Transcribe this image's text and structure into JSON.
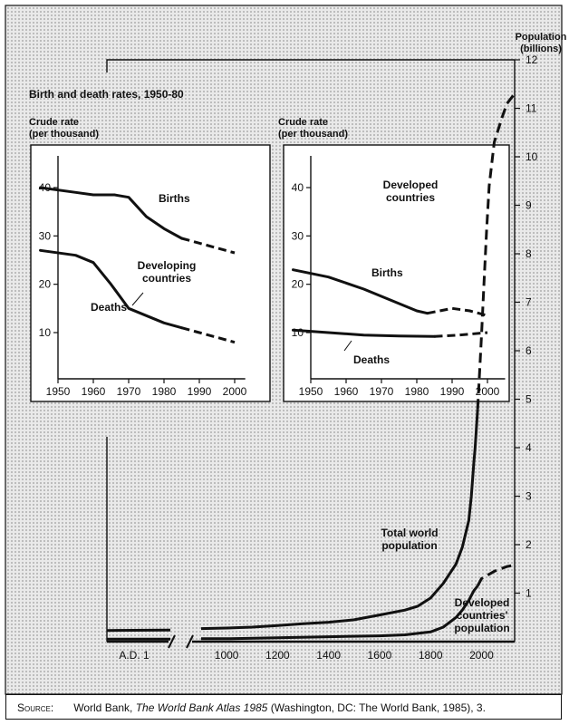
{
  "chart_data": [
    {
      "type": "line",
      "title": "Birth and death rates, 1950-80",
      "panel": "Developing countries",
      "ylabel": "Crude rate (per thousand)",
      "xlim": [
        1945,
        2003
      ],
      "ylim": [
        0,
        50
      ],
      "x_ticks": [
        "1950",
        "1960",
        "1970",
        "1980",
        "1990",
        "2000"
      ],
      "y_ticks": [
        "10",
        "20",
        "30",
        "40"
      ],
      "labels": {
        "panel": [
          "Developing",
          "countries"
        ],
        "births": "Births",
        "deaths": "Deaths"
      },
      "series": [
        {
          "name": "Births",
          "points": [
            [
              1945,
              40
            ],
            [
              1955,
              39
            ],
            [
              1960,
              38.5
            ],
            [
              1966,
              38.5
            ],
            [
              1970,
              38
            ],
            [
              1975,
              34
            ],
            [
              1980,
              31.5
            ],
            [
              1985,
              29.5
            ]
          ],
          "projected": [
            [
              1985,
              29.5
            ],
            [
              1990,
              28.5
            ],
            [
              1995,
              27.5
            ],
            [
              2000,
              26.5
            ]
          ]
        },
        {
          "name": "Deaths",
          "points": [
            [
              1945,
              27
            ],
            [
              1955,
              26
            ],
            [
              1960,
              24.5
            ],
            [
              1965,
              20
            ],
            [
              1970,
              15
            ],
            [
              1975,
              13.5
            ],
            [
              1980,
              12
            ],
            [
              1985,
              11
            ]
          ],
          "projected": [
            [
              1985,
              11
            ],
            [
              1990,
              10
            ],
            [
              1995,
              9
            ],
            [
              2000,
              8
            ]
          ]
        }
      ]
    },
    {
      "type": "line",
      "panel": "Developed countries",
      "ylabel": "Crude rate (per thousand)",
      "xlim": [
        1945,
        2005
      ],
      "ylim": [
        0,
        50
      ],
      "x_ticks": [
        "1950",
        "1960",
        "1970",
        "1980",
        "1990",
        "2000"
      ],
      "y_ticks": [
        "10",
        "20",
        "30",
        "40"
      ],
      "labels": {
        "panel": [
          "Developed",
          "countries"
        ],
        "births": "Births",
        "deaths": "Deaths"
      },
      "series": [
        {
          "name": "Births",
          "points": [
            [
              1945,
              23
            ],
            [
              1955,
              21.5
            ],
            [
              1965,
              19
            ],
            [
              1975,
              16
            ],
            [
              1980,
              14.5
            ],
            [
              1983,
              14
            ]
          ],
          "projected": [
            [
              1983,
              14
            ],
            [
              1990,
              15
            ],
            [
              1995,
              14.5
            ],
            [
              2000,
              13.5
            ]
          ]
        },
        {
          "name": "Deaths",
          "points": [
            [
              1945,
              10.5
            ],
            [
              1955,
              10
            ],
            [
              1965,
              9.5
            ],
            [
              1975,
              9.3
            ],
            [
              1985,
              9.2
            ]
          ],
          "projected": [
            [
              1985,
              9.2
            ],
            [
              1992,
              9.5
            ],
            [
              2000,
              10
            ]
          ]
        }
      ]
    },
    {
      "type": "line",
      "panel": "Population (billions)",
      "ylabel": [
        "Population",
        "(billions)"
      ],
      "ylim": [
        0,
        12
      ],
      "y_ticks": [
        "1",
        "2",
        "3",
        "4",
        "5",
        "6",
        "7",
        "8",
        "9",
        "10",
        "11",
        "12"
      ],
      "x_ticks": [
        "A.D. 1",
        "1000",
        "1200",
        "1400",
        "1600",
        "1800",
        "2000"
      ],
      "x_tick_years": [
        1,
        1000,
        1200,
        1400,
        1600,
        1800,
        2000
      ],
      "labels": {
        "total": [
          "Total world",
          "population"
        ],
        "developed": [
          "Developed",
          "countries'",
          "population"
        ]
      },
      "series": [
        {
          "name": "Total world population",
          "points": [
            [
              1,
              0.23
            ],
            [
              250,
              0.24
            ],
            [
              900,
              0.27
            ],
            [
              1000,
              0.28
            ],
            [
              1100,
              0.3
            ],
            [
              1200,
              0.33
            ],
            [
              1300,
              0.37
            ],
            [
              1400,
              0.4
            ],
            [
              1500,
              0.45
            ],
            [
              1600,
              0.55
            ],
            [
              1700,
              0.65
            ],
            [
              1750,
              0.73
            ],
            [
              1800,
              0.9
            ],
            [
              1850,
              1.2
            ],
            [
              1900,
              1.6
            ],
            [
              1925,
              1.95
            ],
            [
              1950,
              2.5
            ],
            [
              1960,
              3.0
            ],
            [
              1970,
              3.7
            ],
            [
              1975,
              4.0
            ],
            [
              1980,
              4.4
            ],
            [
              1985,
              4.8
            ]
          ],
          "projected": [
            [
              1985,
              4.8
            ],
            [
              1990,
              5.3
            ],
            [
              2000,
              6.3
            ],
            [
              2010,
              7.4
            ],
            [
              2020,
              8.5
            ],
            [
              2030,
              9.4
            ],
            [
              2050,
              10.3
            ],
            [
              2080,
              10.8
            ],
            [
              2100,
              11.1
            ],
            [
              2130,
              11.3
            ]
          ]
        },
        {
          "name": "Developed countries' population",
          "points": [
            [
              1,
              0.05
            ],
            [
              250,
              0.05
            ],
            [
              900,
              0.06
            ],
            [
              1000,
              0.06
            ],
            [
              1200,
              0.08
            ],
            [
              1400,
              0.1
            ],
            [
              1600,
              0.12
            ],
            [
              1700,
              0.14
            ],
            [
              1800,
              0.2
            ],
            [
              1850,
              0.3
            ],
            [
              1900,
              0.5
            ],
            [
              1925,
              0.65
            ],
            [
              1950,
              0.85
            ],
            [
              1970,
              1.05
            ],
            [
              1985,
              1.15
            ]
          ],
          "projected": [
            [
              1985,
              1.15
            ],
            [
              2000,
              1.3
            ],
            [
              2050,
              1.45
            ],
            [
              2100,
              1.55
            ],
            [
              2130,
              1.58
            ]
          ]
        }
      ]
    }
  ],
  "source": {
    "label": "Source:",
    "text_before": "World Bank, ",
    "title": "The World Bank Atlas 1985",
    "text_after": " (Washington, DC: The World Bank, 1985), 3."
  }
}
